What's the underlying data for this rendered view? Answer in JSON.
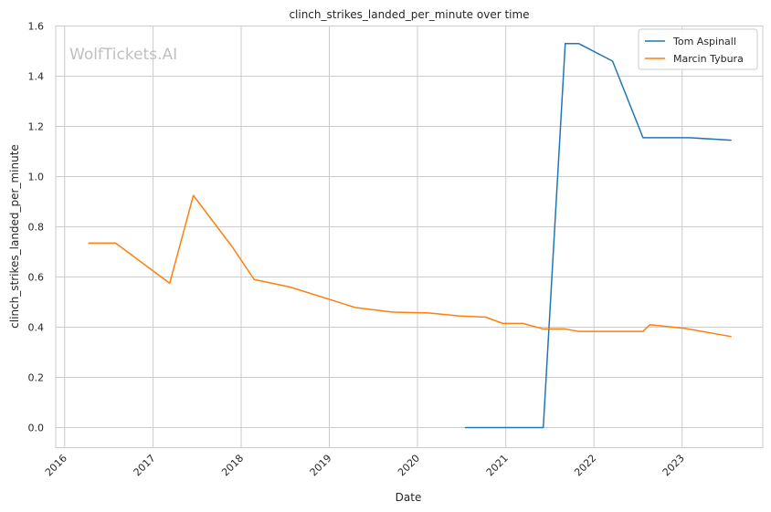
{
  "chart_data": {
    "type": "line",
    "title": "clinch_strikes_landed_per_minute over time",
    "xlabel": "Date",
    "ylabel": "clinch_strikes_landed_per_minute",
    "watermark": "WolfTickets.AI",
    "xlim": [
      "2015-11-25",
      "2023-12-01"
    ],
    "ylim": [
      -0.08,
      1.6
    ],
    "x_ticks": [
      "2016",
      "2017",
      "2018",
      "2019",
      "2020",
      "2021",
      "2022",
      "2023"
    ],
    "y_ticks": [
      "0.0",
      "0.2",
      "0.4",
      "0.6",
      "0.8",
      "1.0",
      "1.2",
      "1.4",
      "1.6"
    ],
    "grid": true,
    "legend_position": "top-right",
    "series": [
      {
        "name": "Tom Aspinall",
        "color": "#1f77b4",
        "points": [
          {
            "x": "2020-07-18",
            "y": 0.0
          },
          {
            "x": "2021-02-27",
            "y": 0.0
          },
          {
            "x": "2021-06-05",
            "y": 0.0
          },
          {
            "x": "2021-09-04",
            "y": 1.53
          },
          {
            "x": "2021-10-30",
            "y": 1.53
          },
          {
            "x": "2022-03-19",
            "y": 1.46
          },
          {
            "x": "2022-07-23",
            "y": 1.155
          },
          {
            "x": "2023-02-01",
            "y": 1.155
          },
          {
            "x": "2023-07-22",
            "y": 1.145
          }
        ]
      },
      {
        "name": "Marcin Tybura",
        "color": "#ff7f0e",
        "points": [
          {
            "x": "2016-04-10",
            "y": 0.735
          },
          {
            "x": "2016-07-30",
            "y": 0.735
          },
          {
            "x": "2017-03-11",
            "y": 0.575
          },
          {
            "x": "2017-06-17",
            "y": 0.925
          },
          {
            "x": "2017-11-25",
            "y": 0.72
          },
          {
            "x": "2018-02-24",
            "y": 0.59
          },
          {
            "x": "2018-07-22",
            "y": 0.56
          },
          {
            "x": "2019-04-20",
            "y": 0.478
          },
          {
            "x": "2019-09-21",
            "y": 0.46
          },
          {
            "x": "2020-02-15",
            "y": 0.457
          },
          {
            "x": "2020-06-20",
            "y": 0.445
          },
          {
            "x": "2020-10-10",
            "y": 0.44
          },
          {
            "x": "2020-12-19",
            "y": 0.415
          },
          {
            "x": "2021-03-13",
            "y": 0.415
          },
          {
            "x": "2021-06-05",
            "y": 0.393
          },
          {
            "x": "2021-09-04",
            "y": 0.393
          },
          {
            "x": "2021-10-30",
            "y": 0.383
          },
          {
            "x": "2022-07-23",
            "y": 0.383
          },
          {
            "x": "2022-08-20",
            "y": 0.41
          },
          {
            "x": "2023-01-14",
            "y": 0.395
          },
          {
            "x": "2023-07-22",
            "y": 0.363
          }
        ]
      }
    ]
  }
}
